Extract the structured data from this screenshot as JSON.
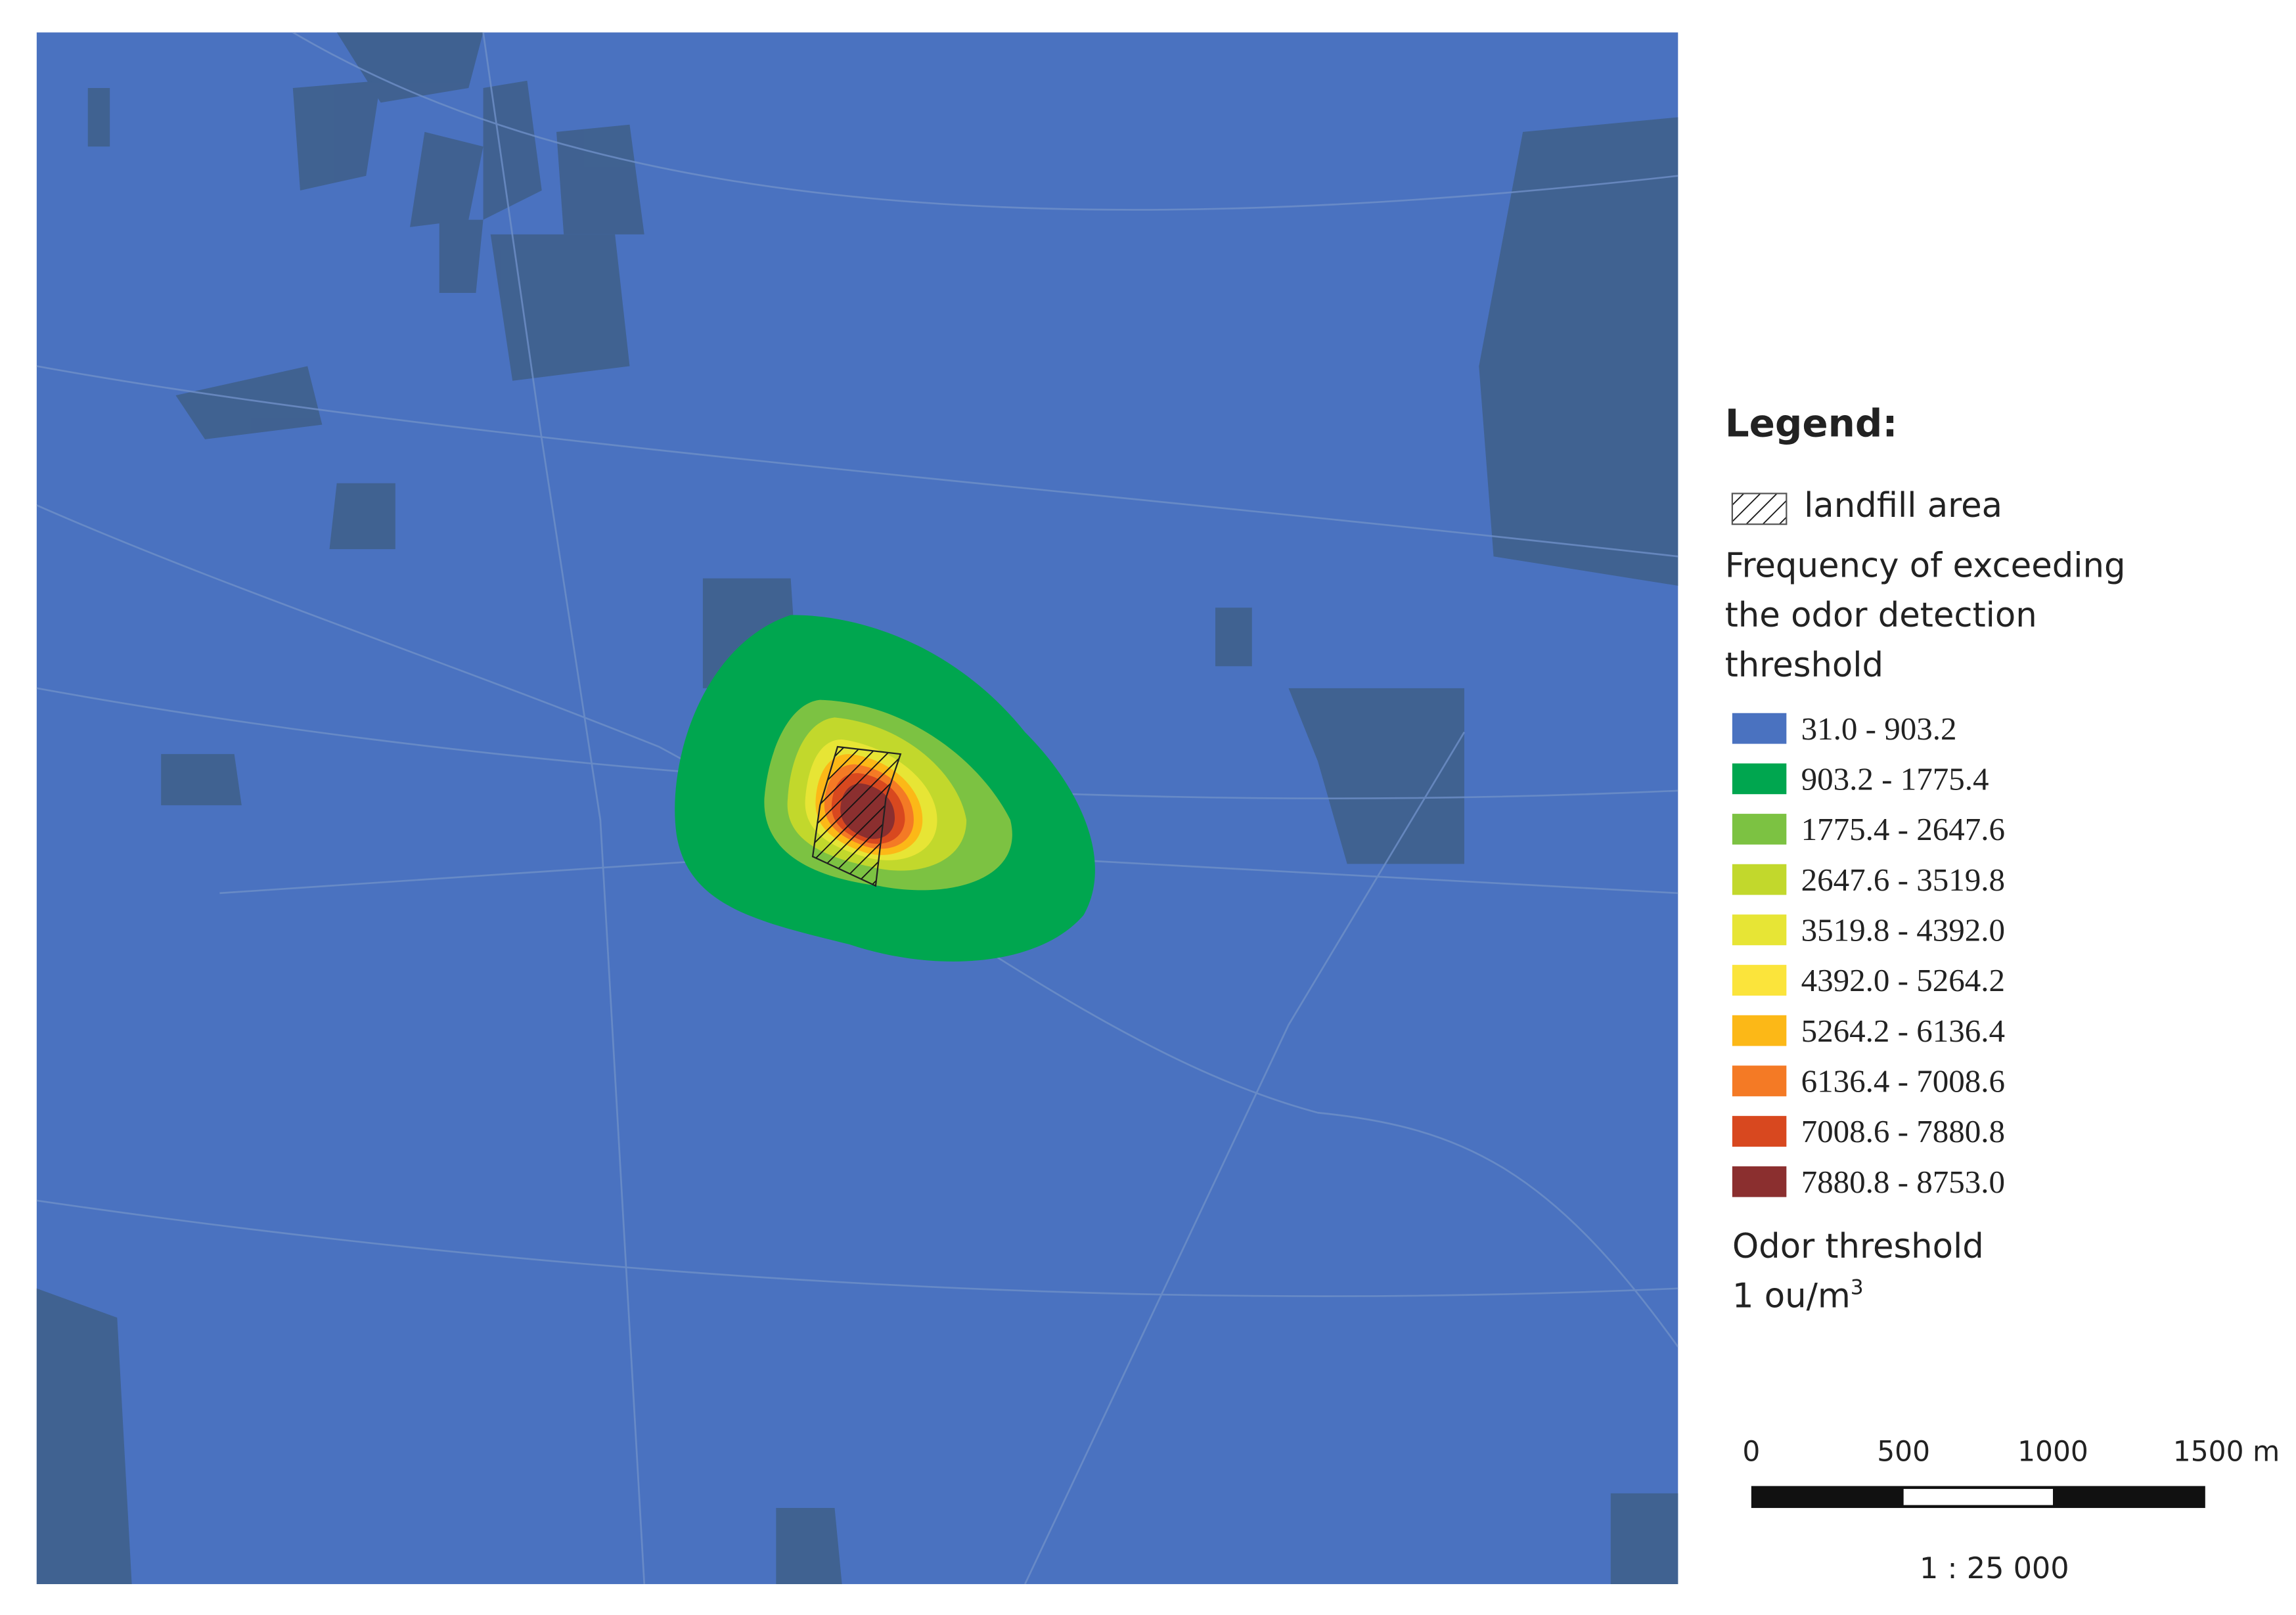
{
  "legend": {
    "title": "Legend:",
    "hatch_label": "landfill area",
    "heading": [
      "Frequency of exceeding",
      "the odor detection",
      "threshold"
    ],
    "classes": [
      {
        "label": "31.0 - 903.2",
        "color": "#4a72c0"
      },
      {
        "label": "903.2 - 1775.4",
        "color": "#00a64f"
      },
      {
        "label": "1775.4 - 2647.6",
        "color": "#7cc242"
      },
      {
        "label": "2647.6 - 3519.8",
        "color": "#c2d82c"
      },
      {
        "label": "3519.8 - 4392.0",
        "color": "#e7e535"
      },
      {
        "label": "4392.0 - 5264.2",
        "color": "#fbe43b"
      },
      {
        "label": "5264.2 - 6136.4",
        "color": "#fcb817"
      },
      {
        "label": "6136.4 - 7008.6",
        "color": "#f47a25"
      },
      {
        "label": "7008.6 - 7880.8",
        "color": "#d8481f"
      },
      {
        "label": "7880.8 - 8753.0",
        "color": "#8b2f2f"
      }
    ],
    "threshold": {
      "title": "Odor threshold",
      "text": "1 ou/m",
      "superscript": "3"
    }
  },
  "scale_bar": {
    "labels": [
      "0",
      "500",
      "1000",
      "1500 m"
    ],
    "ratio": "1 : 25 000"
  }
}
